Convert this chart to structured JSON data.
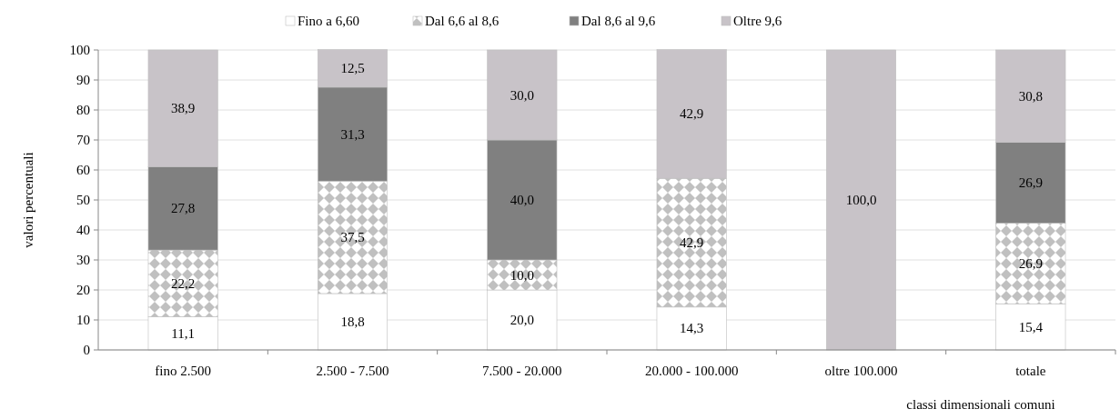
{
  "chart_data": {
    "type": "bar",
    "stacked": true,
    "xlabel": "classi dimensionali comuni",
    "ylabel": "valori percentuali",
    "categories": [
      "fino 2.500",
      "2.500 - 7.500",
      "7.500 - 20.000",
      "20.000 - 100.000",
      "oltre 100.000",
      "totale"
    ],
    "series": [
      {
        "name": "Fino a 6,60",
        "color": "#ffffff",
        "values": [
          11.1,
          18.8,
          20.0,
          14.3,
          null,
          15.4
        ],
        "value_labels": [
          "11,1",
          "18,8",
          "20,0",
          "14,3",
          null,
          "15,4"
        ]
      },
      {
        "name": "Dal 6,6 al 8,6",
        "color": "#c0c0c0",
        "values": [
          22.2,
          37.5,
          10.0,
          42.9,
          null,
          26.9
        ],
        "value_labels": [
          "22,2",
          "37,5",
          "10,0",
          "42,9",
          null,
          "26,9"
        ]
      },
      {
        "name": "Dal 8,6 al 9,6",
        "color": "#808080",
        "values": [
          27.8,
          31.3,
          40.0,
          null,
          null,
          26.9
        ],
        "value_labels": [
          "27,8",
          "31,3",
          "40,0",
          null,
          null,
          "26,9"
        ]
      },
      {
        "name": "Oltre 9,6",
        "color": "#c8c3c8",
        "values": [
          38.9,
          12.5,
          30.0,
          42.9,
          100.0,
          30.8
        ],
        "value_labels": [
          "38,9",
          "12,5",
          "30,0",
          "42,9",
          "100,0",
          "30,8"
        ]
      }
    ],
    "ylim": [
      0,
      100
    ],
    "yticks": [
      0,
      10,
      20,
      30,
      40,
      50,
      60,
      70,
      80,
      90,
      100
    ],
    "grid": "y",
    "legend": "top"
  }
}
